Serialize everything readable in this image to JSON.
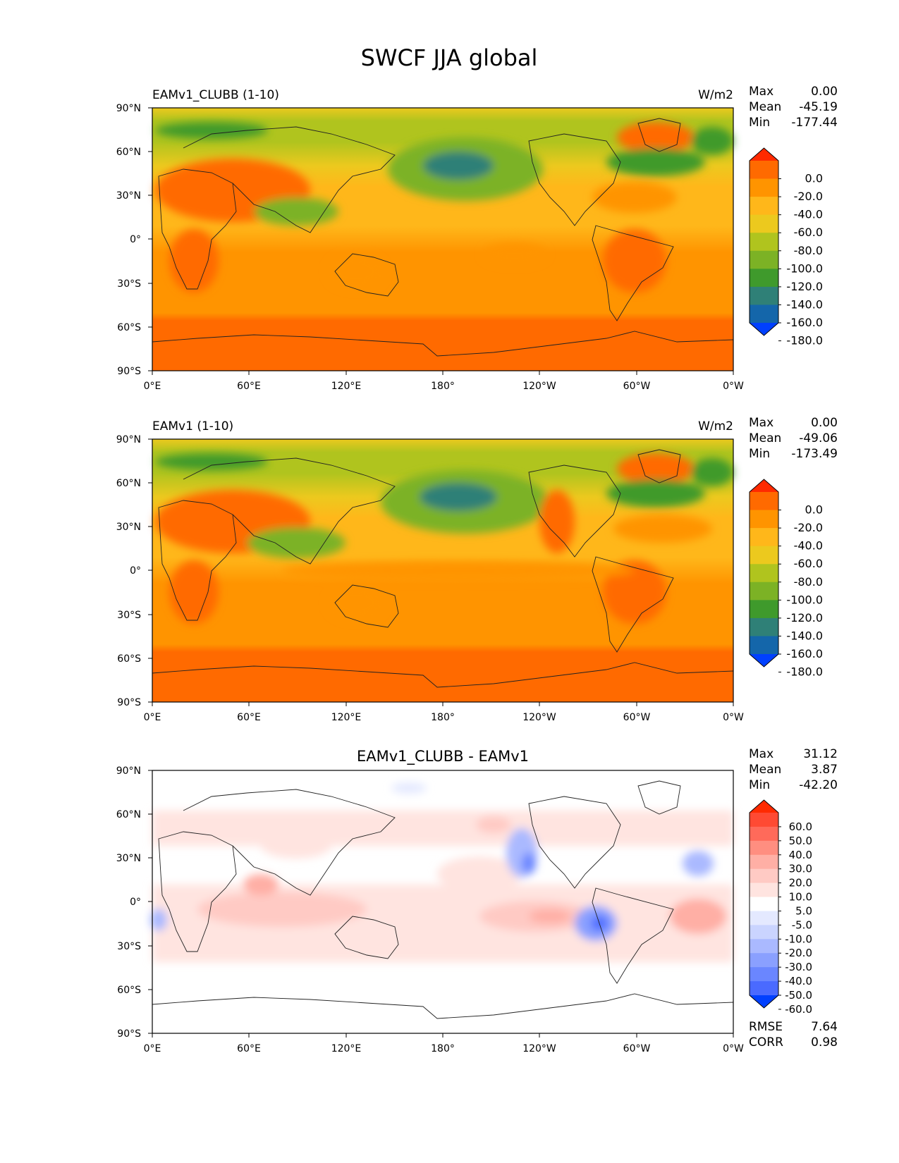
{
  "figure": {
    "title": "SWCF JJA global"
  },
  "x_ticks": [
    "0°E",
    "60°E",
    "120°E",
    "180°",
    "120°W",
    "60°W",
    "0°W"
  ],
  "y_ticks": [
    "90°N",
    "60°N",
    "30°N",
    "0°",
    "30°S",
    "60°S",
    "90°S"
  ],
  "stat_labels": {
    "max": "Max",
    "mean": "Mean",
    "min": "Min",
    "rmse": "RMSE",
    "corr": "CORR"
  },
  "panels": [
    {
      "title_left": "EAMv1_CLUBB (1-10)",
      "title_center": "",
      "units": "W/m2",
      "stats": {
        "max": "0.00",
        "mean": "-45.19",
        "min": "-177.44"
      },
      "colorbar": {
        "levels": [
          "0.0",
          "-20.0",
          "-40.0",
          "-60.0",
          "-80.0",
          "-100.0",
          "-120.0",
          "-140.0",
          "-160.0",
          "-180.0"
        ],
        "colors": [
          "#ff2a00",
          "#ff6a00",
          "#ff9400",
          "#ffb71a",
          "#ecc91e",
          "#b0c41e",
          "#7cb225",
          "#3f9a2c",
          "#2f8077",
          "#1466aa",
          "#0040ff"
        ]
      }
    },
    {
      "title_left": "EAMv1 (1-10)",
      "title_center": "",
      "units": "W/m2",
      "stats": {
        "max": "0.00",
        "mean": "-49.06",
        "min": "-173.49"
      },
      "colorbar": {
        "levels": [
          "0.0",
          "-20.0",
          "-40.0",
          "-60.0",
          "-80.0",
          "-100.0",
          "-120.0",
          "-140.0",
          "-160.0",
          "-180.0"
        ],
        "colors": [
          "#ff2a00",
          "#ff6a00",
          "#ff9400",
          "#ffb71a",
          "#ecc91e",
          "#b0c41e",
          "#7cb225",
          "#3f9a2c",
          "#2f8077",
          "#1466aa",
          "#0040ff"
        ]
      }
    },
    {
      "title_left": "",
      "title_center": "EAMv1_CLUBB - EAMv1",
      "units": "",
      "stats": {
        "max": "31.12",
        "mean": "3.87",
        "min": "-42.20",
        "rmse": "7.64",
        "corr": "0.98"
      },
      "colorbar": {
        "levels": [
          "60.0",
          "50.0",
          "40.0",
          "30.0",
          "20.0",
          "10.0",
          "5.0",
          "-5.0",
          "-10.0",
          "-20.0",
          "-30.0",
          "-40.0",
          "-50.0",
          "-60.0"
        ],
        "colors": [
          "#ff2a00",
          "#ff4a33",
          "#ff6a5a",
          "#ff8e80",
          "#ffafa5",
          "#ffcac4",
          "#ffe4e0",
          "#ffffff",
          "#e4e9ff",
          "#cad4ff",
          "#aab9ff",
          "#8aa0ff",
          "#6a86ff",
          "#4a6aff",
          "#0040ff"
        ]
      }
    }
  ],
  "chart_data": [
    {
      "type": "heatmap",
      "title": "EAMv1_CLUBB (1-10)",
      "units": "W/m2",
      "xlim": [
        0,
        360
      ],
      "ylim": [
        -90,
        90
      ],
      "x_ticks": [
        0,
        60,
        120,
        180,
        240,
        300,
        360
      ],
      "y_ticks": [
        90,
        60,
        30,
        0,
        -30,
        -60,
        -90
      ],
      "contour_levels": [
        0,
        -20,
        -40,
        -60,
        -80,
        -100,
        -120,
        -140,
        -160,
        -180
      ],
      "max": 0.0,
      "mean": -45.19,
      "min": -177.44
    },
    {
      "type": "heatmap",
      "title": "EAMv1 (1-10)",
      "units": "W/m2",
      "xlim": [
        0,
        360
      ],
      "ylim": [
        -90,
        90
      ],
      "x_ticks": [
        0,
        60,
        120,
        180,
        240,
        300,
        360
      ],
      "y_ticks": [
        90,
        60,
        30,
        0,
        -30,
        -60,
        -90
      ],
      "contour_levels": [
        0,
        -20,
        -40,
        -60,
        -80,
        -100,
        -120,
        -140,
        -160,
        -180
      ],
      "max": 0.0,
      "mean": -49.06,
      "min": -173.49
    },
    {
      "type": "heatmap",
      "title": "EAMv1_CLUBB - EAMv1",
      "xlim": [
        0,
        360
      ],
      "ylim": [
        -90,
        90
      ],
      "x_ticks": [
        0,
        60,
        120,
        180,
        240,
        300,
        360
      ],
      "y_ticks": [
        90,
        60,
        30,
        0,
        -30,
        -60,
        -90
      ],
      "contour_levels": [
        60,
        50,
        40,
        30,
        20,
        10,
        5,
        -5,
        -10,
        -20,
        -30,
        -40,
        -50,
        -60
      ],
      "max": 31.12,
      "mean": 3.87,
      "min": -42.2,
      "rmse": 7.64,
      "corr": 0.98
    }
  ]
}
